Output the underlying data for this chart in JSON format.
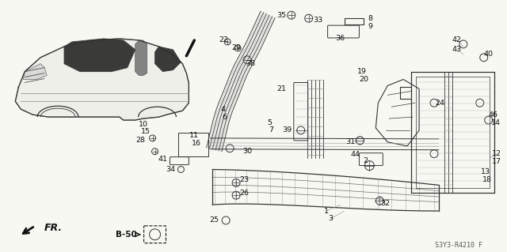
{
  "background_color": "#f5f5f0",
  "diagram_code": "S3Y3-R4210 F",
  "fr_label": "FR.",
  "b50_label": "B-50",
  "fig_width": 6.4,
  "fig_height": 3.19,
  "dpi": 100,
  "label_color": "#111111",
  "line_color": "#333333"
}
